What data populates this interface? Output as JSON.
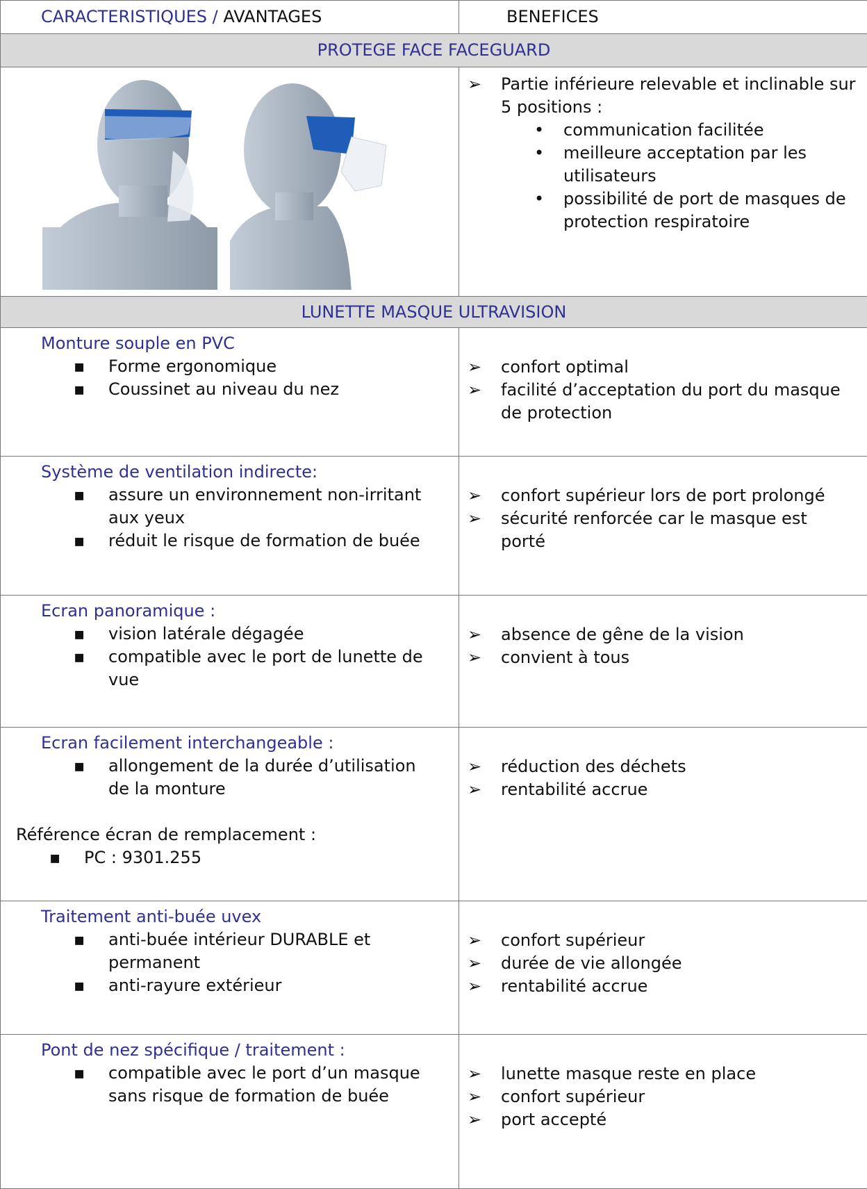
{
  "header": {
    "col1_part1": "CARACTERISTIQUES /",
    "col1_part2": "AVANTAGES",
    "col2": "BENEFICES"
  },
  "sections": [
    {
      "title": "PROTEGE FACE FACEGUARD",
      "rows": [
        {
          "benefits": {
            "intro": "Partie inférieure relevable et inclinable sur 5 positions :",
            "items": [
              "communication facilitée",
              "meilleure acceptation par les utilisateurs",
              "possibilité de port de masques de protection respiratoire"
            ]
          }
        }
      ]
    },
    {
      "title": "LUNETTE MASQUE ULTRAVISION",
      "rows": [
        {
          "feature": {
            "heading": "Monture souple en PVC",
            "items": [
              "Forme ergonomique",
              "Coussinet au niveau du nez"
            ]
          },
          "benefits": {
            "items": [
              "confort optimal",
              "facilité d’acceptation du port du masque de protection"
            ]
          }
        },
        {
          "feature": {
            "heading": "Système de ventilation indirecte:",
            "items": [
              "assure un environnement non-irritant aux yeux",
              "réduit le risque de formation de buée"
            ]
          },
          "benefits": {
            "items": [
              "confort supérieur lors de port prolongé",
              "sécurité renforcée car le masque est porté"
            ]
          }
        },
        {
          "feature": {
            "heading": "Ecran panoramique :",
            "items": [
              "vision latérale dégagée",
              "compatible avec le port de lunette de vue"
            ]
          },
          "benefits": {
            "items": [
              "absence de gêne de la vision",
              "convient à tous"
            ]
          }
        },
        {
          "feature": {
            "heading": "Ecran facilement interchangeable :",
            "items": [
              "allongement de la durée d’utilisation de la monture"
            ],
            "note": "Référence écran de remplacement :",
            "note_items": [
              "PC : 9301.255"
            ]
          },
          "benefits": {
            "items": [
              "réduction des déchets",
              "rentabilité accrue"
            ]
          }
        },
        {
          "feature": {
            "heading": "Traitement anti-buée uvex",
            "items": [
              "anti-buée intérieur DURABLE et permanent",
              "anti-rayure extérieur"
            ]
          },
          "benefits": {
            "items": [
              "confort supérieur",
              "durée de vie allongée",
              "rentabilité accrue"
            ]
          }
        },
        {
          "feature": {
            "heading": "Pont de nez spécifique / traitement :",
            "items": [
              "compatible avec le port d’un masque sans risque de formation de buée"
            ]
          },
          "benefits": {
            "items": [
              "lunette masque reste en place",
              "confort supérieur",
              "port accepté"
            ]
          }
        }
      ]
    }
  ]
}
